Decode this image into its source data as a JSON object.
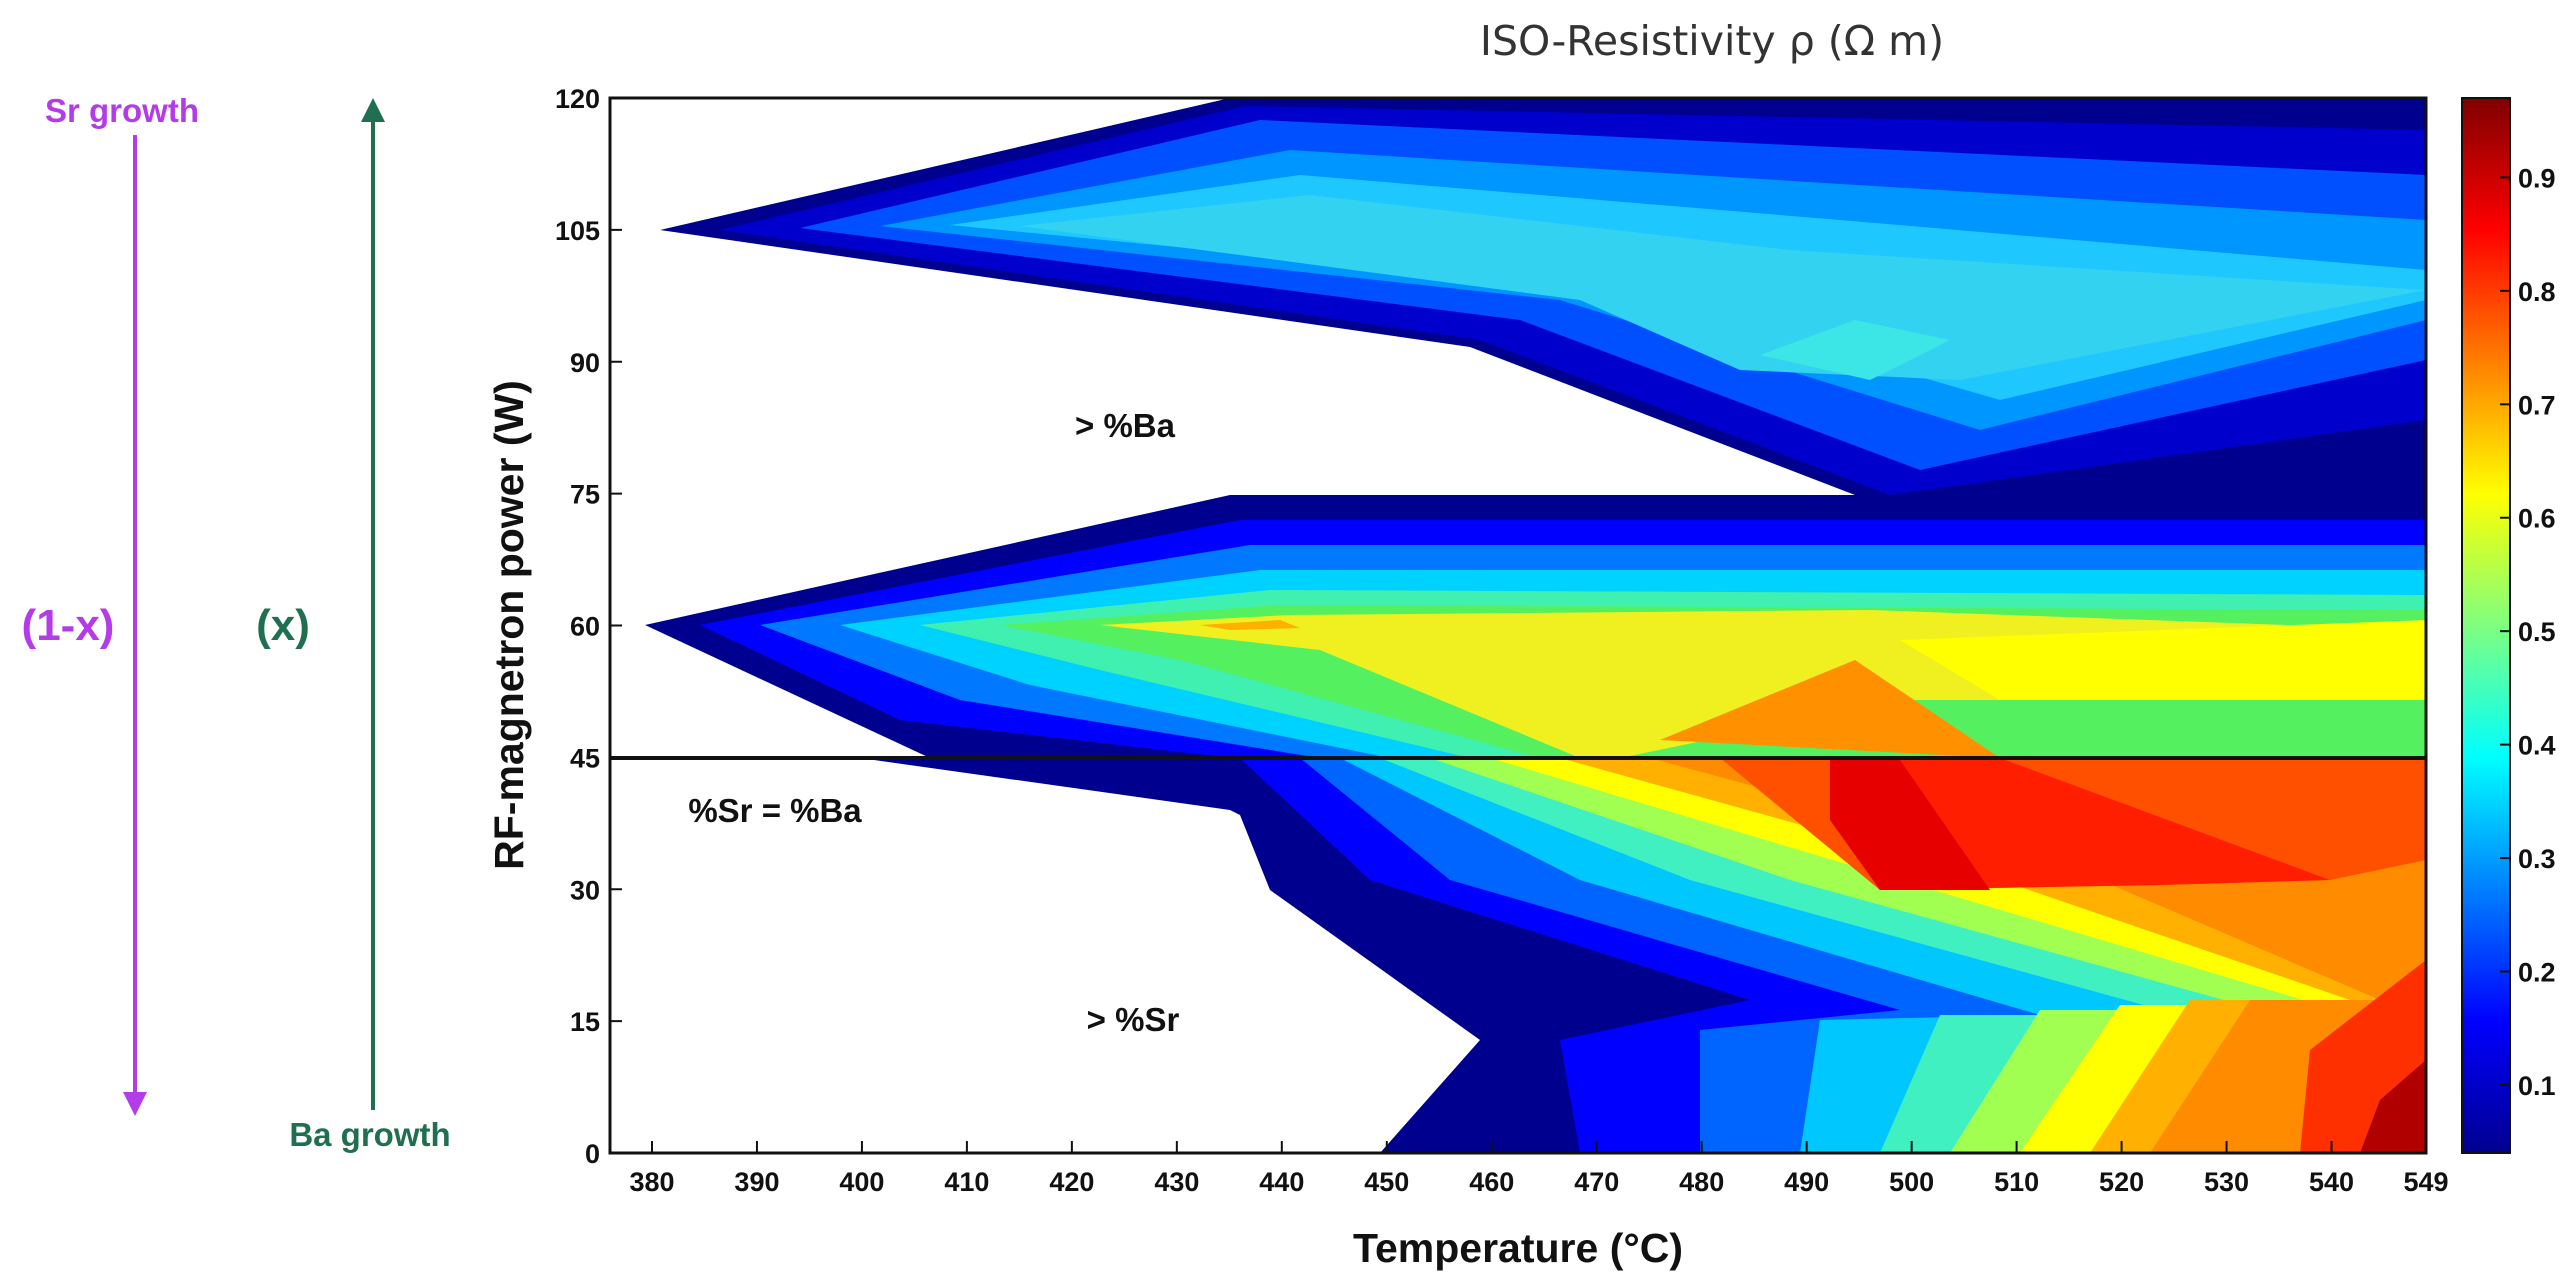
{
  "chart_data": {
    "type": "contour",
    "title": "ISO-Resistivity ρ (Ω m)",
    "xlabel": "Temperature (°C)",
    "ylabel": "RF-magnetron power (W)",
    "xlim": [
      376,
      549
    ],
    "ylim": [
      0,
      120
    ],
    "x_ticks": [
      "380",
      "390",
      "400",
      "410",
      "420",
      "430",
      "440",
      "450",
      "460",
      "470",
      "480",
      "490",
      "500",
      "510",
      "520",
      "530",
      "540",
      "549"
    ],
    "y_ticks": [
      "0",
      "15",
      "30",
      "45",
      "60",
      "75",
      "90",
      "105",
      "120"
    ],
    "colorbar": {
      "range": [
        0.04,
        0.97
      ],
      "ticks": [
        "0.1",
        "0.2",
        "0.3",
        "0.4",
        "0.5",
        "0.6",
        "0.7",
        "0.8",
        "0.9"
      ],
      "colormap": [
        "#00008f",
        "#0000ff",
        "#00ffff",
        "#7fff7f",
        "#ffff00",
        "#ff7f00",
        "#ff0000",
        "#800000"
      ]
    },
    "reference_line": {
      "y": 45,
      "label": "%Sr = %Ba"
    },
    "annotations": [
      "> %Ba",
      "> %Sr"
    ],
    "regions": [
      {
        "name": "upper band core",
        "approx_value": 0.33
      },
      {
        "name": "middle band core",
        "approx_value": 0.55
      },
      {
        "name": "lower band peak",
        "approx_value": 0.9
      },
      {
        "name": "bottom-right corner",
        "approx_value": 0.97
      }
    ]
  },
  "side_labels": {
    "sr_growth": "Sr growth",
    "ba_growth": "Ba growth",
    "one_minus_x": "(1-x)",
    "x": "(x)"
  },
  "colors": {
    "sr": "#b43ce8",
    "ba": "#1f6f50"
  }
}
